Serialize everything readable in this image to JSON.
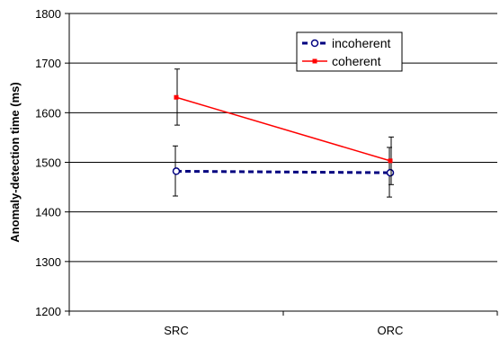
{
  "chart_data": {
    "type": "line",
    "ylabel": "Anomaly-detection time (ms)",
    "xlabel": "",
    "title": "",
    "categories": [
      "SRC",
      "ORC"
    ],
    "ylim": [
      1200,
      1800
    ],
    "yticks": [
      1200,
      1300,
      1400,
      1500,
      1600,
      1700,
      1800
    ],
    "grid": "horizontal",
    "legend_position": "top-right",
    "series": [
      {
        "name": "incoherent",
        "values": [
          1482,
          1479
        ],
        "error": [
          [
            1432,
            1533
          ],
          [
            1430,
            1530
          ]
        ],
        "color": "#000080",
        "line_style": "dashed",
        "marker": "open-circle"
      },
      {
        "name": "coherent",
        "values": [
          1631,
          1503
        ],
        "error": [
          [
            1575,
            1688
          ],
          [
            1455,
            1551
          ]
        ],
        "color": "#ff0000",
        "line_style": "solid",
        "marker": "square"
      }
    ]
  }
}
